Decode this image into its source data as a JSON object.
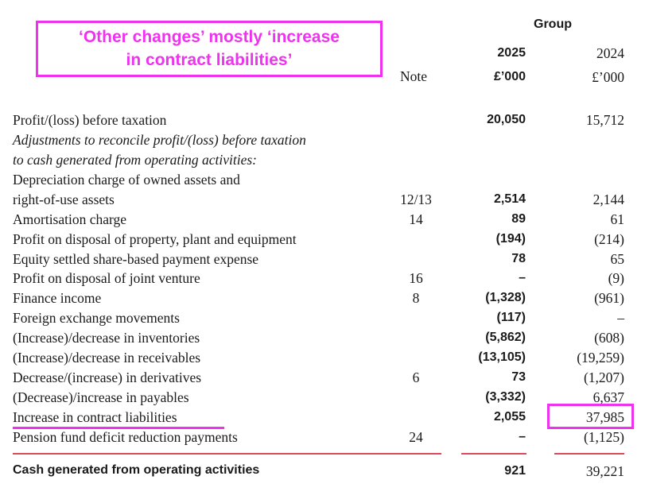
{
  "callout": {
    "line1": "‘Other changes’ mostly ‘increase",
    "line2": "in contract liabilities’"
  },
  "header": {
    "group": "Group",
    "note": "Note",
    "year_current": "2025",
    "year_prior": "2024",
    "unit_current": "£’000",
    "unit_prior": "£’000"
  },
  "rows": [
    {
      "label": "Profit/(loss) before taxation",
      "note": "",
      "v2025": "20,050",
      "v2024": "15,712"
    },
    {
      "label": "Adjustments to reconcile profit/(loss) before taxation",
      "note": "",
      "v2025": "",
      "v2024": ""
    },
    {
      "label": "to cash generated from operating activities:",
      "note": "",
      "v2025": "",
      "v2024": ""
    },
    {
      "label": "Depreciation charge of owned assets and",
      "note": "",
      "v2025": "",
      "v2024": ""
    },
    {
      "label": "right-of-use assets",
      "note": "12/13",
      "v2025": "2,514",
      "v2024": "2,144"
    },
    {
      "label": "Amortisation charge",
      "note": "14",
      "v2025": "89",
      "v2024": "61"
    },
    {
      "label": "Profit on disposal of property, plant and equipment",
      "note": "",
      "v2025": "(194)",
      "v2024": "(214)"
    },
    {
      "label": "Equity settled share-based payment expense",
      "note": "",
      "v2025": "78",
      "v2024": "65"
    },
    {
      "label": "Profit on disposal of joint venture",
      "note": "16",
      "v2025": "–",
      "v2024": "(9)"
    },
    {
      "label": "Finance income",
      "note": "8",
      "v2025": "(1,328)",
      "v2024": "(961)"
    },
    {
      "label": "Foreign exchange movements",
      "note": "",
      "v2025": "(117)",
      "v2024": "–"
    },
    {
      "label": "(Increase)/decrease in inventories",
      "note": "",
      "v2025": "(5,862)",
      "v2024": "(608)"
    },
    {
      "label": "(Increase)/decrease in receivables",
      "note": "",
      "v2025": "(13,105)",
      "v2024": "(19,259)"
    },
    {
      "label": "Decrease/(increase) in derivatives",
      "note": "6",
      "v2025": "73",
      "v2024": "(1,207)"
    },
    {
      "label": "(Decrease)/increase in payables",
      "note": "",
      "v2025": "(3,332)",
      "v2024": "6,637"
    },
    {
      "label": "Increase in contract liabilities",
      "note": "",
      "v2025": "2,055",
      "v2024": "37,985"
    },
    {
      "label": "Pension fund deficit reduction payments",
      "note": "24",
      "v2025": "–",
      "v2024": "(1,125)"
    }
  ],
  "total": {
    "label": "Cash generated from operating activities",
    "v2025": "921",
    "v2024": "39,221"
  },
  "colors": {
    "highlight": "#ee33ee",
    "rule": "#d94a5a"
  }
}
